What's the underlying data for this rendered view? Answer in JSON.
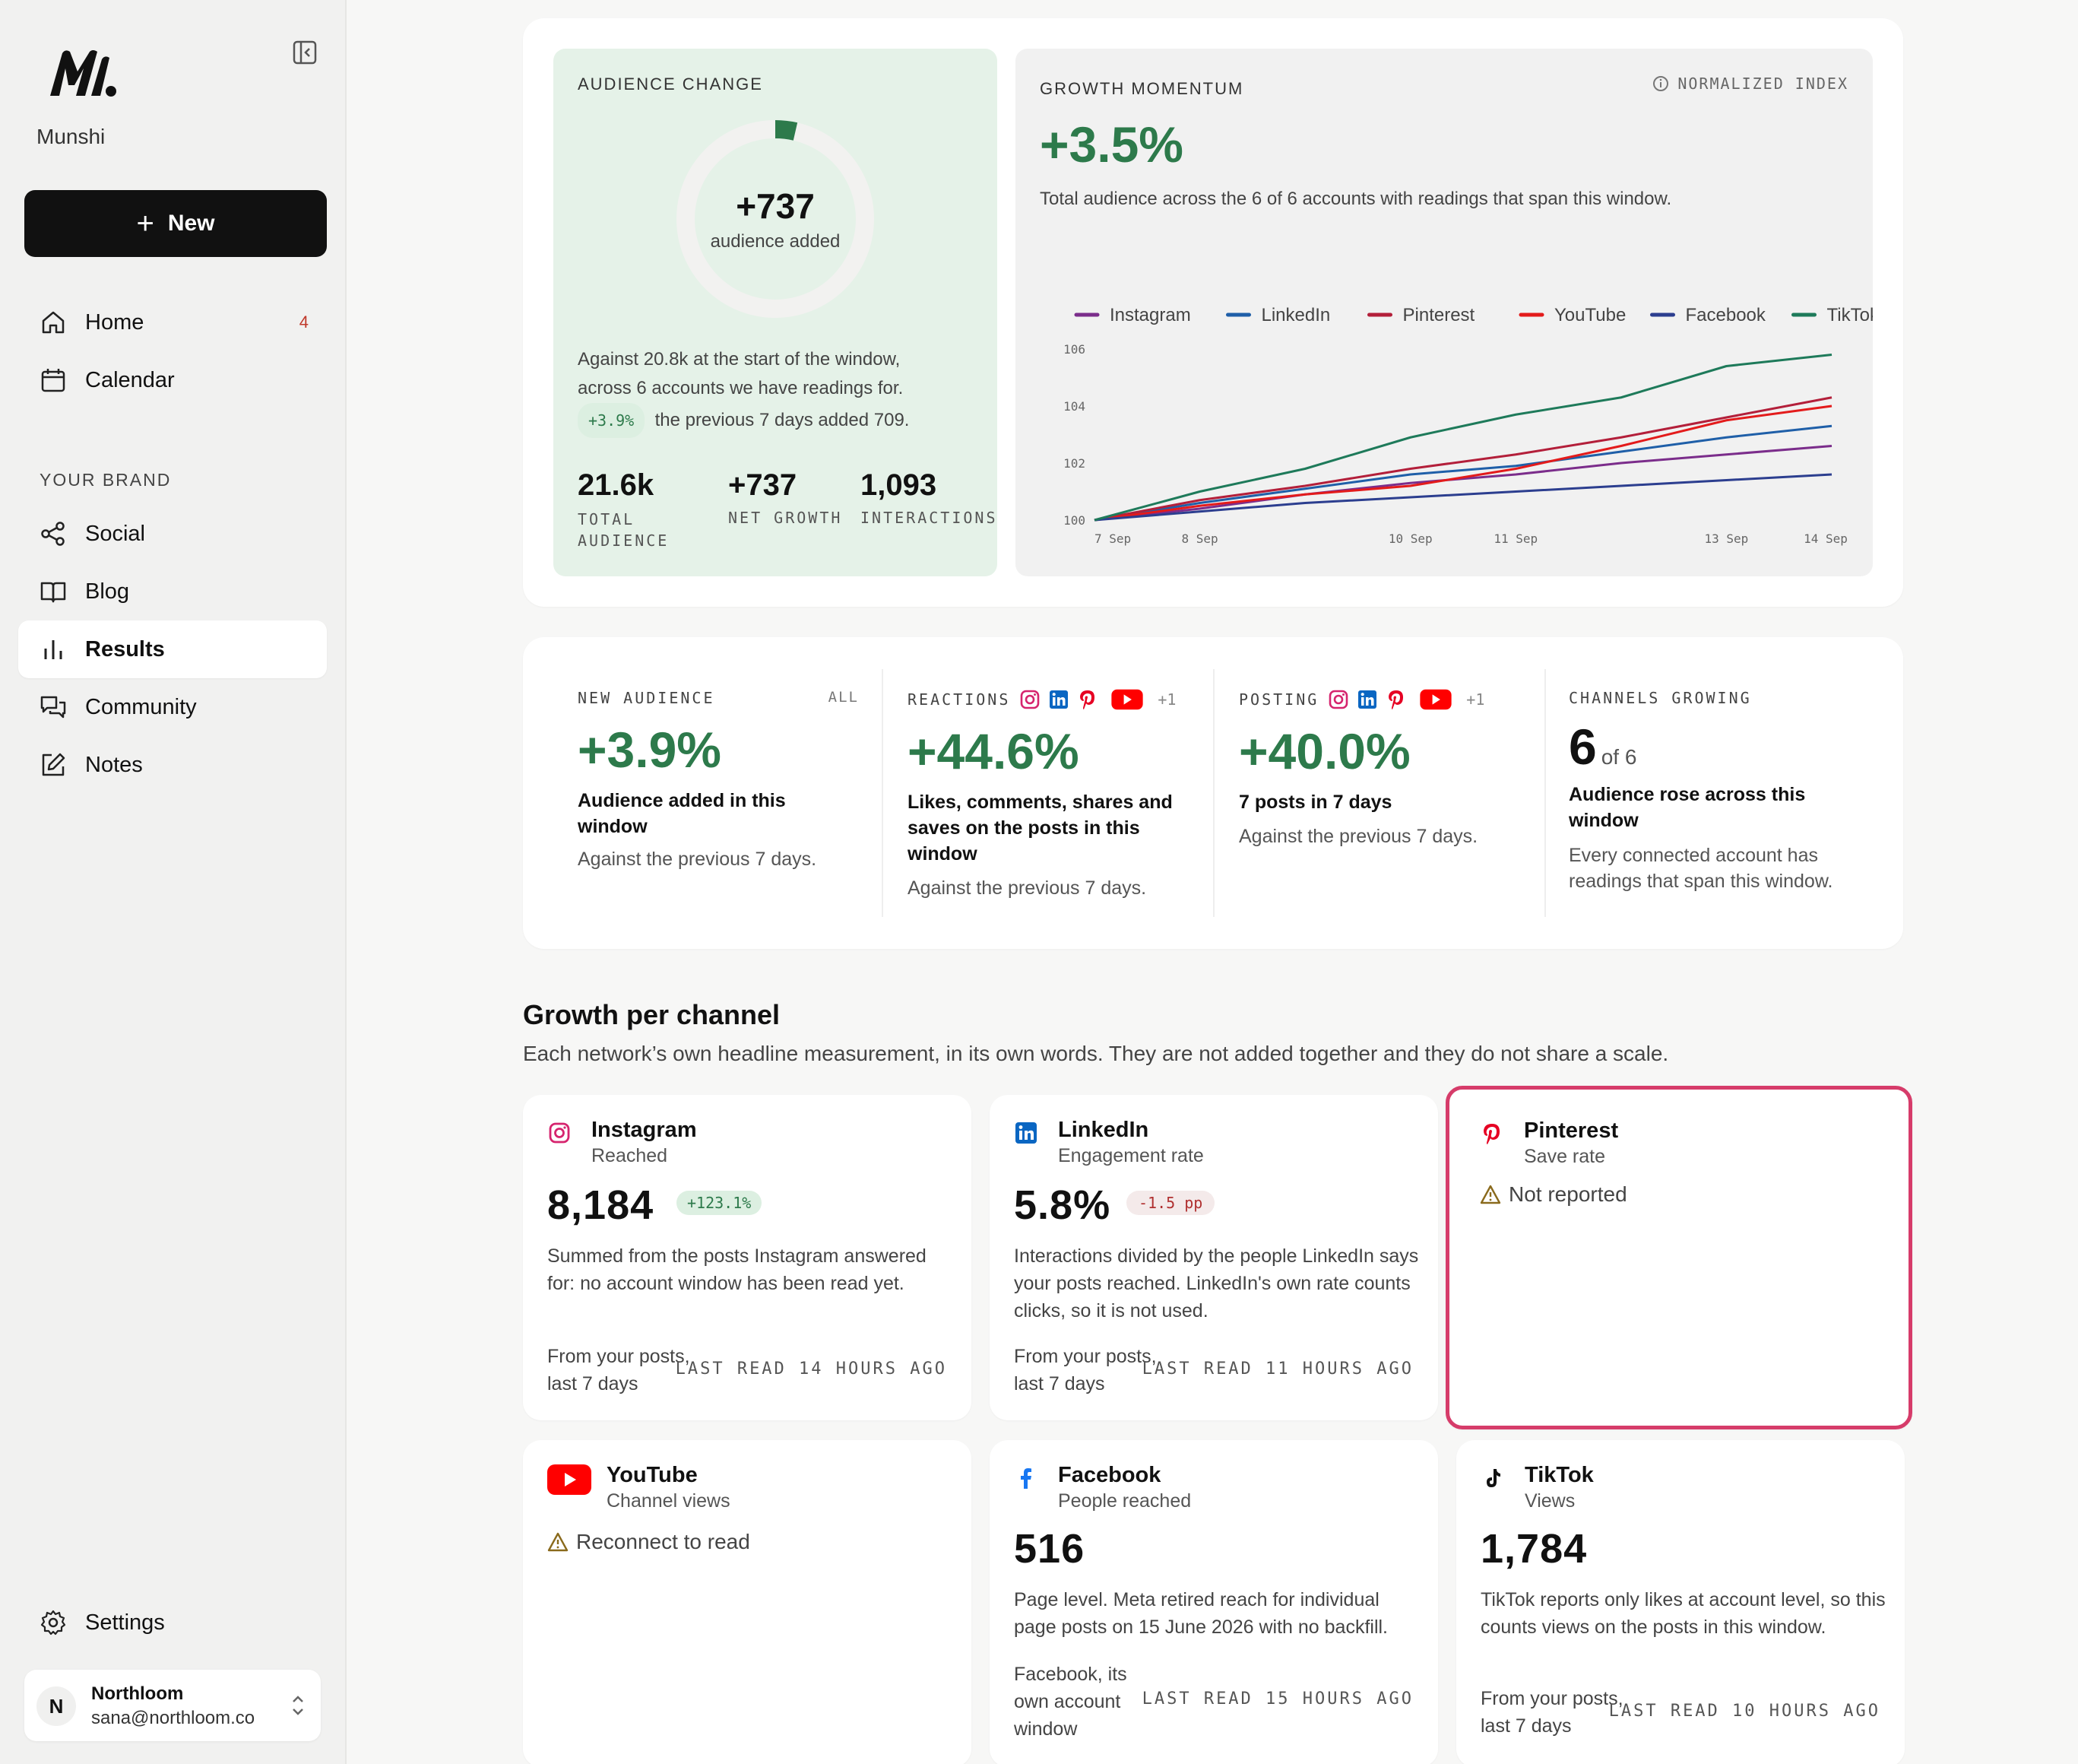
{
  "sidebar": {
    "brand": "Munshi",
    "new_label": "New",
    "items": [
      {
        "label": "Home",
        "badge": "4"
      },
      {
        "label": "Calendar"
      }
    ],
    "section_label": "YOUR BRAND",
    "brand_items": [
      {
        "label": "Social"
      },
      {
        "label": "Blog"
      },
      {
        "label": "Results"
      },
      {
        "label": "Community"
      },
      {
        "label": "Notes"
      }
    ],
    "settings_label": "Settings",
    "user": {
      "initial": "N",
      "name": "Northloom",
      "email": "sana@northloom.co"
    }
  },
  "audience_change": {
    "eyebrow": "AUDIENCE CHANGE",
    "ring_value": "+737",
    "ring_caption": "audience added",
    "ring_fraction": 0.036,
    "line1": "Against 20.8k at the start of the window,",
    "line2": "across 6 accounts we have readings for.",
    "pill": "+3.9%",
    "prev": "the previous 7 days added 709.",
    "stats": [
      {
        "value": "21.6k",
        "label": "TOTAL AUDIENCE"
      },
      {
        "value": "+737",
        "label": "NET GROWTH"
      },
      {
        "value": "1,093",
        "label": "INTERACTIONS"
      }
    ]
  },
  "growth_momentum": {
    "eyebrow": "GROWTH MOMENTUM",
    "badge": "NORMALIZED INDEX",
    "value": "+3.5%",
    "caption": "Total audience across the 6 of 6 accounts with readings that span this window."
  },
  "chart_data": {
    "type": "line",
    "title": "",
    "xlabel": "",
    "ylabel": "",
    "x": [
      "7 Sep",
      "8 Sep",
      "9 Sep",
      "10 Sep",
      "11 Sep",
      "12 Sep",
      "13 Sep",
      "14 Sep"
    ],
    "x_ticks": [
      "7 Sep",
      "8 Sep",
      "10 Sep",
      "11 Sep",
      "13 Sep",
      "14 Sep"
    ],
    "ylim": [
      100,
      106
    ],
    "y_ticks": [
      "100",
      "102",
      "104",
      "106"
    ],
    "grid": false,
    "legend": "top",
    "series": [
      {
        "name": "Instagram",
        "color": "#7b2d8b",
        "values": [
          100.0,
          100.4,
          100.9,
          101.3,
          101.6,
          102.0,
          102.3,
          102.6
        ]
      },
      {
        "name": "LinkedIn",
        "color": "#1f5fa8",
        "values": [
          100.0,
          100.6,
          101.1,
          101.6,
          101.9,
          102.4,
          102.9,
          103.3
        ]
      },
      {
        "name": "Pinterest",
        "color": "#b31f3a",
        "values": [
          100.0,
          100.7,
          101.2,
          101.8,
          102.3,
          102.9,
          103.6,
          104.3
        ]
      },
      {
        "name": "YouTube",
        "color": "#e31b1b",
        "values": [
          100.0,
          100.5,
          100.9,
          101.2,
          101.8,
          102.6,
          103.5,
          104.0
        ]
      },
      {
        "name": "Facebook",
        "color": "#2c3e8f",
        "values": [
          100.0,
          100.3,
          100.6,
          100.8,
          101.0,
          101.2,
          101.4,
          101.6
        ]
      },
      {
        "name": "TikTok",
        "color": "#1e7a5a",
        "values": [
          100.0,
          101.0,
          101.8,
          102.9,
          103.7,
          104.3,
          105.4,
          105.8
        ]
      }
    ]
  },
  "kpis": [
    {
      "label": "NEW AUDIENCE",
      "tag": "ALL",
      "value": "+3.9%",
      "title": "Audience added in this window",
      "note": "Against the previous 7 days."
    },
    {
      "label": "REACTIONS",
      "extra": "+1",
      "value": "+44.6%",
      "title": "Likes, comments, shares and saves on the posts in this window",
      "note": "Against the previous 7 days."
    },
    {
      "label": "POSTING",
      "extra": "+1",
      "value": "+40.0%",
      "title": "7 posts in 7 days",
      "note": "Against the previous 7 days."
    },
    {
      "label": "CHANNELS GROWING",
      "value": "6",
      "of": "of 6",
      "title": "Audience rose across this window",
      "note": "Every connected account has readings that span this window."
    }
  ],
  "growth_per_channel": {
    "title": "Growth per channel",
    "subtitle": "Each network’s own headline measurement, in its own words. They are not added together and they do not share a scale."
  },
  "channels": [
    {
      "name": "Instagram",
      "metric": "Reached",
      "value": "8,184",
      "delta": "+123.1%",
      "desc": "Summed from the posts Instagram answered for: no account window has been read yet.",
      "source": "From your posts, last 7 days",
      "last_read": "LAST READ 14 HOURS AGO"
    },
    {
      "name": "LinkedIn",
      "metric": "Engagement rate",
      "value": "5.8%",
      "delta": "-1.5 pp",
      "desc": "Interactions divided by the people LinkedIn says your posts reached. LinkedIn's own rate counts clicks, so it is not used.",
      "source": "From your posts, last 7 days",
      "last_read": "LAST READ 11 HOURS AGO"
    },
    {
      "name": "Pinterest",
      "metric": "Save rate",
      "status": "Not reported"
    },
    {
      "name": "YouTube",
      "metric": "Channel views",
      "status": "Reconnect to read"
    },
    {
      "name": "Facebook",
      "metric": "People reached",
      "value": "516",
      "desc": "Page level. Meta retired reach for individual page posts on 15 June 2026 with no backfill.",
      "source": "Facebook, its own account window",
      "last_read": "LAST READ 15 HOURS AGO"
    },
    {
      "name": "TikTok",
      "metric": "Views",
      "value": "1,784",
      "desc": "TikTok reports only likes at account level, so this counts views on the posts in this window.",
      "source": "From your posts, last 7 days",
      "last_read": "LAST READ 10 HOURS AGO"
    }
  ]
}
